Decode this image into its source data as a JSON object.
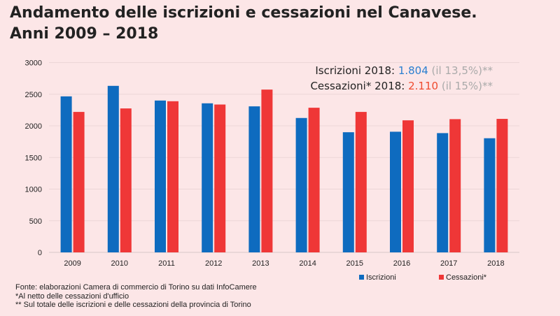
{
  "title_line1": "Andamento delle iscrizioni e cessazioni nel Canavese.",
  "title_line2": "Anni 2009 – 2018",
  "annotation": {
    "iscr_label": "Iscrizioni 2018: ",
    "iscr_value": "1.804",
    "iscr_pct": " (il 13,5%)**",
    "cess_label": "Cessazioni* 2018: ",
    "cess_value": "2.110",
    "cess_pct": " (il 15%)**"
  },
  "footnotes": [
    "Fonte: elaborazioni Camera di commercio di Torino su dati InfoCamere",
    "*Al netto delle cessazioni d'ufficio",
    "** Sul totale delle iscrizioni e delle cessazioni della provincia di Torino"
  ],
  "colors": {
    "iscrizioni": "#0e6bbf",
    "cessazioni": "#ef3737",
    "grey": "#aaaaaa"
  },
  "chart_data": {
    "type": "bar",
    "categories": [
      "2009",
      "2010",
      "2011",
      "2012",
      "2013",
      "2014",
      "2015",
      "2016",
      "2017",
      "2018"
    ],
    "series": [
      {
        "name": "Iscrizioni",
        "values": [
          2466,
          2632,
          2400,
          2356,
          2308,
          2124,
          1899,
          1907,
          1885,
          1804
        ]
      },
      {
        "name": "Cessazioni*",
        "values": [
          2220,
          2275,
          2389,
          2337,
          2573,
          2286,
          2220,
          2087,
          2106,
          2110
        ]
      }
    ],
    "yticks": [
      0,
      500,
      1000,
      1500,
      2000,
      2500,
      3000
    ],
    "ylim": [
      0,
      3000
    ],
    "grid": true,
    "legend": "bottom-right"
  }
}
